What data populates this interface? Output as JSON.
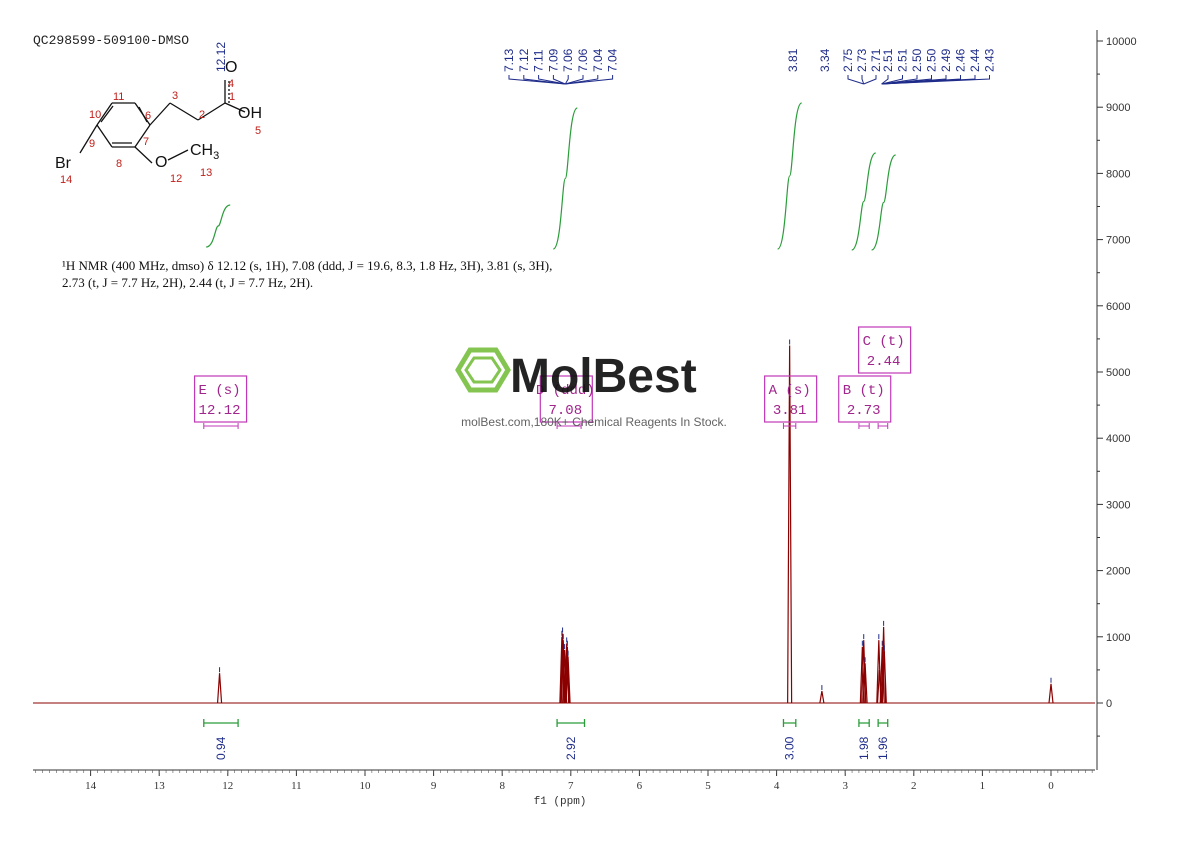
{
  "chart_data": {
    "type": "line",
    "title": "QC298599-509100-DMSO",
    "xlabel": "f1 (ppm)",
    "ylabel": "",
    "xlim": [
      14.8,
      -0.6
    ],
    "ylim": [
      -1000,
      10000
    ],
    "x_ticks": [
      "14",
      "13",
      "12",
      "11",
      "10",
      "9",
      "8",
      "7",
      "6",
      "5",
      "4",
      "3",
      "2",
      "1",
      "0"
    ],
    "y_ticks": [
      "10000",
      "9000",
      "8000",
      "7000",
      "6000",
      "5000",
      "4000",
      "3000",
      "2000",
      "1000",
      "0"
    ],
    "formula_lines": [
      "¹H NMR (400 MHz, dmso) δ 12.12 (s, 1H), 7.08 (ddd, J = 19.6, 8.3, 1.8 Hz, 3H), 3.81 (s, 3H),",
      "2.73 (t, J = 7.7 Hz, 2H), 2.44 (t, J = 7.7 Hz, 2H)."
    ],
    "peak_labels_left": [
      "7.13",
      "7.12",
      "7.11",
      "7.09",
      "7.06",
      "7.06",
      "7.04",
      "7.04"
    ],
    "peak_labels_right": [
      "3.81",
      "3.34",
      "2.75",
      "2.73",
      "2.71",
      "2.51",
      "2.51",
      "2.50",
      "2.50",
      "2.49",
      "2.46",
      "2.44",
      "2.43"
    ],
    "peak_label_single": "12.12",
    "peaks": [
      {
        "ppm": 12.12,
        "height": 450
      },
      {
        "ppm": 7.13,
        "height": 1000
      },
      {
        "ppm": 7.12,
        "height": 1050
      },
      {
        "ppm": 7.11,
        "height": 950
      },
      {
        "ppm": 7.09,
        "height": 800
      },
      {
        "ppm": 7.06,
        "height": 900
      },
      {
        "ppm": 7.05,
        "height": 850
      },
      {
        "ppm": 7.04,
        "height": 700
      },
      {
        "ppm": 3.81,
        "height": 5400
      },
      {
        "ppm": 3.34,
        "height": 180
      },
      {
        "ppm": 2.75,
        "height": 850
      },
      {
        "ppm": 2.73,
        "height": 950
      },
      {
        "ppm": 2.71,
        "height": 600
      },
      {
        "ppm": 2.51,
        "height": 950
      },
      {
        "ppm": 2.5,
        "height": 500
      },
      {
        "ppm": 2.46,
        "height": 850
      },
      {
        "ppm": 2.44,
        "height": 1150
      },
      {
        "ppm": 2.43,
        "height": 780
      },
      {
        "ppm": 0.0,
        "height": 290
      }
    ],
    "multiplets": [
      {
        "letter": "E (s)",
        "value": "12.12",
        "center": 12.12,
        "range": [
          12.35,
          11.85
        ]
      },
      {
        "letter": "D (ddd)",
        "value": "7.08",
        "center": 7.08,
        "range": [
          7.2,
          6.85
        ]
      },
      {
        "letter": "A (s)",
        "value": "3.81",
        "center": 3.81,
        "range": [
          3.9,
          3.72
        ]
      },
      {
        "letter": "B (t)",
        "value": "2.73",
        "center": 2.73,
        "range": [
          2.8,
          2.65
        ]
      },
      {
        "letter": "C (t)",
        "value": "2.44",
        "center": 2.44,
        "range": [
          2.52,
          2.38
        ]
      }
    ],
    "integrals": [
      {
        "value": "0.94",
        "range": [
          12.35,
          11.85
        ]
      },
      {
        "value": "2.92",
        "range": [
          7.2,
          6.8
        ]
      },
      {
        "value": "3.00",
        "range": [
          3.9,
          3.72
        ]
      },
      {
        "value": "1.98",
        "range": [
          2.8,
          2.65
        ]
      },
      {
        "value": "1.96",
        "range": [
          2.52,
          2.38
        ]
      }
    ]
  },
  "structure": {
    "atoms": {
      "o4": "O",
      "oh": "OH",
      "o12": "O",
      "ch3": "CH",
      "ch3_sub": "3",
      "br": "Br"
    },
    "numbers": [
      "1",
      "2",
      "3",
      "4",
      "5",
      "6",
      "7",
      "8",
      "9",
      "10",
      "11",
      "12",
      "13",
      "14"
    ]
  },
  "watermark": {
    "name": "MolBest",
    "tagline": "molBest.com,180K+ Chemical Reagents In Stock."
  },
  "colors": {
    "spectrum": "#8b0000",
    "peak_tick": "#1f2c8a",
    "integral": "#2a9d3a",
    "multiplet_box": "#c038b8",
    "logo_green": "#7ac143"
  }
}
